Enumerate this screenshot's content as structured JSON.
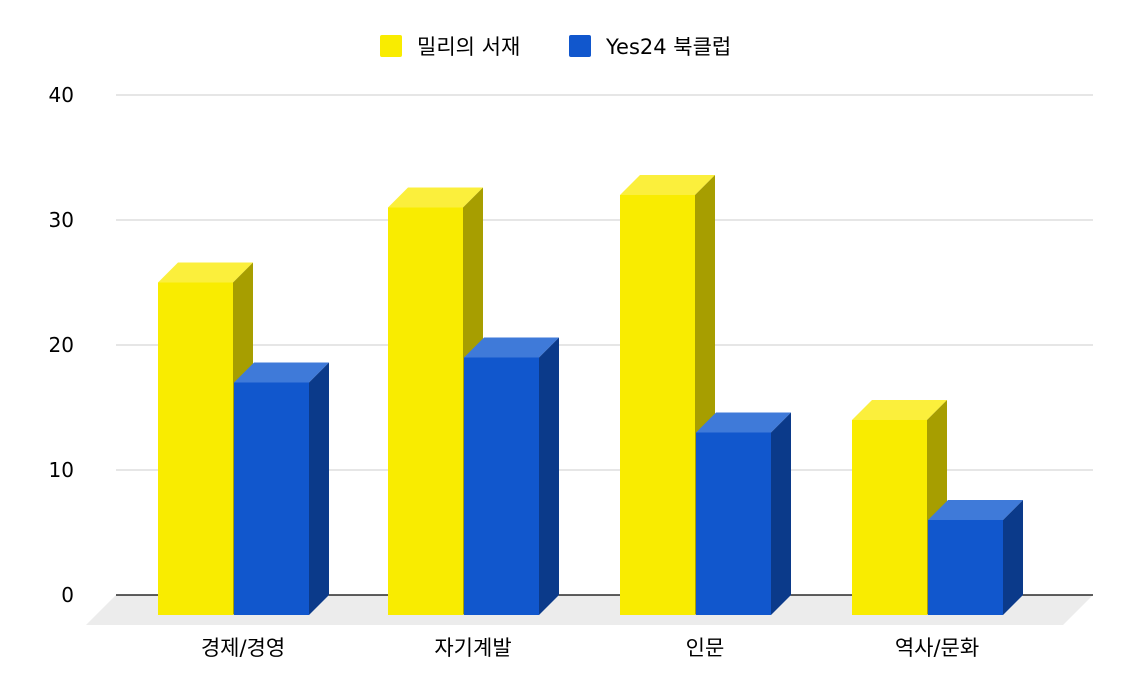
{
  "chart_data": {
    "type": "bar",
    "subtype": "3d-grouped",
    "title": "",
    "xlabel": "",
    "ylabel": "",
    "categories": [
      "경제/경영",
      "자기계발",
      "인문",
      "역사/문화"
    ],
    "series": [
      {
        "name": "밀리의 서재",
        "values": [
          25,
          31,
          32,
          14
        ],
        "colors": {
          "front": "#f9ec00",
          "top": "#fbef3c",
          "side": "#a79e00"
        }
      },
      {
        "name": "Yes24 북클럽",
        "values": [
          17,
          19,
          13,
          6
        ],
        "colors": {
          "front": "#1157cd",
          "top": "#3f7ad9",
          "side": "#0b3a8a"
        }
      }
    ],
    "yticks": [
      "0",
      "10",
      "20",
      "30",
      "40"
    ],
    "ylim": [
      0,
      40
    ],
    "grid": true,
    "legend_position": "top-center",
    "colors": {
      "grid": "#cccccc",
      "axis": "#000000",
      "floor": "#ececec"
    }
  }
}
